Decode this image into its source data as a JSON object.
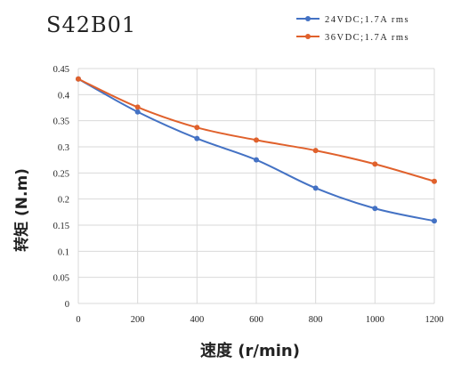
{
  "chart_data": {
    "type": "line",
    "title": "S42B01",
    "xlabel": "速度 (r/min)",
    "ylabel": "转矩 (N.m)",
    "xlim": [
      0,
      1200
    ],
    "ylim": [
      0,
      0.45
    ],
    "x_ticks": [
      "0",
      "200",
      "400",
      "600",
      "800",
      "1000",
      "1200"
    ],
    "y_ticks": [
      "0",
      "0.05",
      "0.1",
      "0.15",
      "0.2",
      "0.25",
      "0.3",
      "0.35",
      "0.4",
      "0.45"
    ],
    "grid": true,
    "legend_position": "top-right",
    "smooth": true,
    "x": [
      0,
      200,
      400,
      600,
      800,
      1000,
      1200
    ],
    "series": [
      {
        "name": "24VDC;1.7A rms",
        "color": "#4472c4",
        "values": [
          0.43,
          0.367,
          0.316,
          0.275,
          0.221,
          0.182,
          0.158
        ]
      },
      {
        "name": "36VDC;1.7A rms",
        "color": "#e0612c",
        "values": [
          0.43,
          0.376,
          0.337,
          0.313,
          0.293,
          0.267,
          0.234
        ]
      }
    ]
  }
}
